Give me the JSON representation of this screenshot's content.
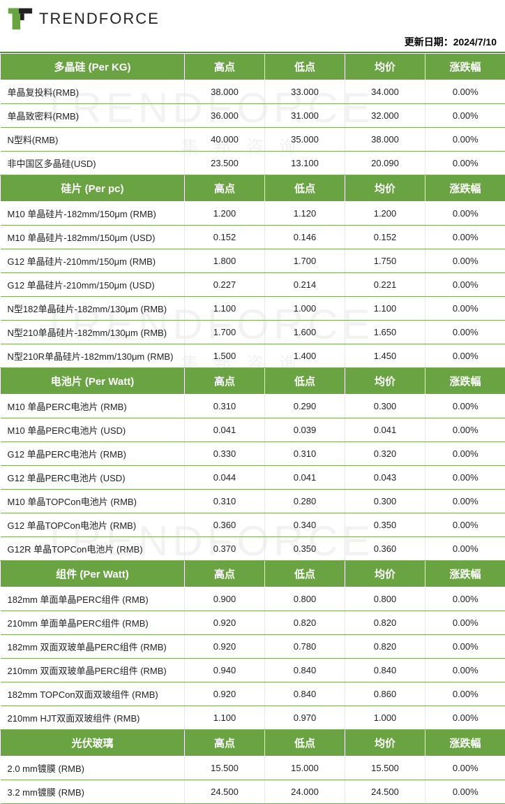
{
  "brand": "TRENDFORCE",
  "update_label": "更新日期：",
  "update_date": "2024/7/10",
  "colors": {
    "header_bg": "#6aa342",
    "header_fg": "#ffffff",
    "row_border": "#7aad55",
    "accent_border": "#5a8f3a",
    "text": "#222222",
    "watermark": "rgba(0,0,0,0.05)"
  },
  "columns": {
    "high": "高点",
    "low": "低点",
    "avg": "均价",
    "chg": "涨跌幅"
  },
  "sections": [
    {
      "title": "多晶硅 (Per KG)",
      "rows": [
        {
          "name": "单晶复投料(RMB)",
          "high": "38.000",
          "low": "33.000",
          "avg": "34.000",
          "chg": "0.00%"
        },
        {
          "name": "单晶致密料(RMB)",
          "high": "36.000",
          "low": "31.000",
          "avg": "32.000",
          "chg": "0.00%"
        },
        {
          "name": "N型料(RMB)",
          "high": "40.000",
          "low": "35.000",
          "avg": "38.000",
          "chg": "0.00%"
        },
        {
          "name": "非中国区多晶硅(USD)",
          "high": "23.500",
          "low": "13.100",
          "avg": "20.090",
          "chg": "0.00%"
        }
      ]
    },
    {
      "title": "硅片 (Per pc)",
      "rows": [
        {
          "name": "M10 单晶硅片-182mm/150μm (RMB)",
          "high": "1.200",
          "low": "1.120",
          "avg": "1.200",
          "chg": "0.00%"
        },
        {
          "name": "M10 单晶硅片-182mm/150μm (USD)",
          "high": "0.152",
          "low": "0.146",
          "avg": "0.152",
          "chg": "0.00%"
        },
        {
          "name": "G12 单晶硅片-210mm/150μm  (RMB)",
          "high": "1.800",
          "low": "1.700",
          "avg": "1.750",
          "chg": "0.00%"
        },
        {
          "name": "G12 单晶硅片-210mm/150μm  (USD)",
          "high": "0.227",
          "low": "0.214",
          "avg": "0.221",
          "chg": "0.00%"
        },
        {
          "name": "N型182单晶硅片-182mm/130μm (RMB)",
          "high": "1.100",
          "low": "1.000",
          "avg": "1.100",
          "chg": "0.00%"
        },
        {
          "name": "N型210单晶硅片-182mm/130μm (RMB)",
          "high": "1.700",
          "low": "1.600",
          "avg": "1.650",
          "chg": "0.00%"
        },
        {
          "name": "N型210R单晶硅片-182mm/130μm (RMB)",
          "high": "1.500",
          "low": "1.400",
          "avg": "1.450",
          "chg": "0.00%"
        }
      ]
    },
    {
      "title": "电池片 (Per Watt)",
      "rows": [
        {
          "name": "M10 单晶PERC电池片 (RMB)",
          "high": "0.310",
          "low": "0.290",
          "avg": "0.300",
          "chg": "0.00%"
        },
        {
          "name": "M10 单晶PERC电池片 (USD)",
          "high": "0.041",
          "low": "0.039",
          "avg": "0.041",
          "chg": "0.00%"
        },
        {
          "name": "G12 单晶PERC电池片 (RMB)",
          "high": "0.330",
          "low": "0.310",
          "avg": "0.320",
          "chg": "0.00%"
        },
        {
          "name": "G12 单晶PERC电池片 (USD)",
          "high": "0.044",
          "low": "0.041",
          "avg": "0.043",
          "chg": "0.00%"
        },
        {
          "name": "M10 单晶TOPCon电池片 (RMB)",
          "high": "0.310",
          "low": "0.280",
          "avg": "0.300",
          "chg": "0.00%"
        },
        {
          "name": "G12 单晶TOPCon电池片 (RMB)",
          "high": "0.360",
          "low": "0.340",
          "avg": "0.350",
          "chg": "0.00%"
        },
        {
          "name": "G12R 单晶TOPCon电池片 (RMB)",
          "high": "0.370",
          "low": "0.350",
          "avg": "0.360",
          "chg": "0.00%"
        }
      ]
    },
    {
      "title": "组件 (Per Watt)",
      "rows": [
        {
          "name": "182mm 单面单晶PERC组件 (RMB)",
          "high": "0.900",
          "low": "0.800",
          "avg": "0.800",
          "chg": "0.00%"
        },
        {
          "name": "210mm 单面单晶PERC组件 (RMB)",
          "high": "0.920",
          "low": "0.820",
          "avg": "0.820",
          "chg": "0.00%"
        },
        {
          "name": "182mm 双面双玻单晶PERC组件 (RMB)",
          "high": "0.920",
          "low": "0.780",
          "avg": "0.820",
          "chg": "0.00%"
        },
        {
          "name": "210mm 双面双玻单晶PERC组件 (RMB)",
          "high": "0.940",
          "low": "0.840",
          "avg": "0.840",
          "chg": "0.00%"
        },
        {
          "name": "182mm TOPCon双面双玻组件 (RMB)",
          "high": "0.920",
          "low": "0.840",
          "avg": "0.860",
          "chg": "0.00%"
        },
        {
          "name": "210mm HJT双面双玻组件 (RMB)",
          "high": "1.100",
          "low": "0.970",
          "avg": "1.000",
          "chg": "0.00%"
        }
      ]
    },
    {
      "title": "光伏玻璃",
      "rows": [
        {
          "name": "2.0 mm镀膜 (RMB)",
          "high": "15.500",
          "low": "15.000",
          "avg": "15.500",
          "chg": "0.00%"
        },
        {
          "name": "3.2 mm镀膜 (RMB)",
          "high": "24.500",
          "low": "24.000",
          "avg": "24.500",
          "chg": "0.00%"
        }
      ]
    }
  ]
}
